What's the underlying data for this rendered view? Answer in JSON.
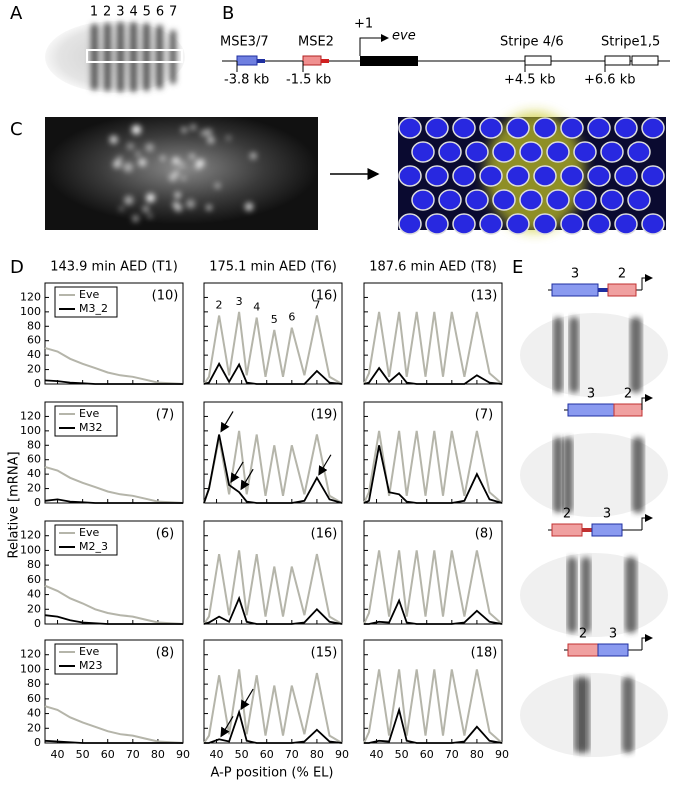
{
  "figure": {
    "y_label": "Relative [mRNA]",
    "x_label": "A-P position (% EL)"
  },
  "panel_labels": [
    "A",
    "B",
    "C",
    "D",
    "E"
  ],
  "panel_a": {
    "stripe_numbers": [
      "1",
      "2",
      "3",
      "4",
      "5",
      "6",
      "7"
    ]
  },
  "panel_b": {
    "elements": [
      {
        "label": "MSE3/7",
        "position": "-3.8 kb"
      },
      {
        "label": "MSE2",
        "position": "-1.5 kb"
      },
      {
        "label": "Stripe 4/6",
        "position": "+4.5 kb"
      },
      {
        "label": "Stripe1,5",
        "position": "+6.6 kb"
      }
    ],
    "tss": "+1",
    "gene": "eve"
  },
  "panel_e": {
    "constructs": [
      {
        "labels": [
          "3",
          "2"
        ]
      },
      {
        "labels": [
          "3",
          "2"
        ]
      },
      {
        "labels": [
          "2",
          "3"
        ]
      },
      {
        "labels": [
          "2",
          "3"
        ]
      }
    ]
  },
  "chart_data": [
    {
      "type": "line",
      "title": "143.9 min AED (T1)",
      "annotation": "(10)",
      "legend": "upper left",
      "xlim": [
        35,
        90
      ],
      "ylim": [
        0,
        140
      ],
      "xticks": [
        40,
        50,
        60,
        70,
        80,
        90
      ],
      "yticks": [
        0,
        20,
        40,
        60,
        80,
        100,
        120
      ],
      "x": [
        35,
        40,
        45,
        50,
        55,
        60,
        65,
        70,
        75,
        80,
        85,
        90
      ],
      "series": [
        {
          "name": "Eve",
          "color": "#b5b5aa",
          "values": [
            50,
            45,
            35,
            28,
            22,
            16,
            12,
            10,
            6,
            2,
            1,
            0
          ]
        },
        {
          "name": "M3_2",
          "color": "#000000",
          "values": [
            5,
            4,
            2,
            1,
            0,
            0,
            0,
            0,
            0,
            0,
            0,
            0
          ]
        }
      ]
    },
    {
      "type": "line",
      "title": "175.1 min AED (T6)",
      "annotation": "(16)",
      "peak_labels": [
        "2",
        "3",
        "4",
        "5",
        "6",
        "7"
      ],
      "xlim": [
        35,
        90
      ],
      "ylim": [
        0,
        140
      ],
      "xticks": [
        40,
        50,
        60,
        70,
        80,
        90
      ],
      "yticks": [
        0,
        20,
        40,
        60,
        80,
        100,
        120
      ],
      "x": [
        35,
        37,
        41,
        45,
        49,
        52,
        56,
        59.5,
        63,
        66.5,
        70,
        75,
        80,
        85,
        90
      ],
      "series": [
        {
          "color": "#b5b5aa",
          "values": [
            0,
            10,
            95,
            12,
            100,
            12,
            92,
            10,
            75,
            10,
            78,
            12,
            95,
            10,
            0
          ]
        },
        {
          "color": "#000000",
          "values": [
            0,
            2,
            28,
            3,
            27,
            2,
            0,
            0,
            0,
            0,
            0,
            0,
            18,
            2,
            0
          ]
        }
      ]
    },
    {
      "type": "line",
      "title": "187.6 min AED (T8)",
      "annotation": "(13)",
      "xlim": [
        35,
        90
      ],
      "ylim": [
        0,
        140
      ],
      "xticks": [
        40,
        50,
        60,
        70,
        80,
        90
      ],
      "yticks": [
        0,
        20,
        40,
        60,
        80,
        100,
        120
      ],
      "x": [
        35,
        37,
        41,
        45,
        49,
        52,
        56,
        59.5,
        63,
        66.5,
        70,
        75,
        80,
        85,
        90
      ],
      "series": [
        {
          "color": "#b5b5aa",
          "values": [
            0,
            15,
            100,
            10,
            100,
            10,
            100,
            10,
            100,
            10,
            100,
            10,
            100,
            15,
            0
          ]
        },
        {
          "color": "#000000",
          "values": [
            0,
            2,
            22,
            3,
            15,
            2,
            0,
            0,
            0,
            0,
            0,
            0,
            12,
            2,
            0
          ]
        }
      ]
    },
    {
      "type": "line",
      "annotation": "(7)",
      "legend": "upper left",
      "xlim": [
        35,
        90
      ],
      "ylim": [
        0,
        140
      ],
      "xticks": [
        40,
        50,
        60,
        70,
        80,
        90
      ],
      "yticks": [
        0,
        20,
        40,
        60,
        80,
        100,
        120
      ],
      "x": [
        35,
        40,
        45,
        50,
        55,
        60,
        65,
        70,
        75,
        80,
        85,
        90
      ],
      "series": [
        {
          "name": "Eve",
          "color": "#b5b5aa",
          "values": [
            50,
            45,
            35,
            28,
            22,
            16,
            12,
            10,
            6,
            2,
            1,
            0
          ]
        },
        {
          "name": "M32",
          "color": "#000000",
          "values": [
            3,
            5,
            2,
            1,
            0,
            0,
            0,
            0,
            0,
            0,
            0,
            0
          ]
        }
      ]
    },
    {
      "type": "line",
      "annotation": "(19)",
      "xlim": [
        35,
        90
      ],
      "ylim": [
        0,
        140
      ],
      "xticks": [
        40,
        50,
        60,
        70,
        80,
        90
      ],
      "yticks": [
        0,
        20,
        40,
        60,
        80,
        100,
        120
      ],
      "x": [
        35,
        37,
        41,
        45,
        49,
        52,
        56,
        59.5,
        63,
        66.5,
        70,
        75,
        80,
        85,
        90
      ],
      "series": [
        {
          "color": "#b5b5aa",
          "values": [
            0,
            20,
            90,
            12,
            100,
            12,
            95,
            10,
            80,
            10,
            80,
            12,
            95,
            10,
            0
          ]
        },
        {
          "color": "#000000",
          "values": [
            0,
            20,
            95,
            25,
            15,
            2,
            0,
            0,
            0,
            0,
            0,
            3,
            35,
            5,
            0
          ]
        }
      ]
    },
    {
      "type": "line",
      "annotation": "(7)",
      "xlim": [
        35,
        90
      ],
      "ylim": [
        0,
        140
      ],
      "xticks": [
        40,
        50,
        60,
        70,
        80,
        90
      ],
      "yticks": [
        0,
        20,
        40,
        60,
        80,
        100,
        120
      ],
      "x": [
        35,
        37,
        41,
        45,
        49,
        52,
        56,
        59.5,
        63,
        66.5,
        70,
        75,
        80,
        85,
        90
      ],
      "series": [
        {
          "color": "#b5b5aa",
          "values": [
            0,
            15,
            100,
            10,
            100,
            10,
            100,
            10,
            100,
            10,
            100,
            10,
            100,
            15,
            0
          ]
        },
        {
          "color": "#000000",
          "values": [
            0,
            3,
            80,
            15,
            12,
            2,
            0,
            0,
            0,
            0,
            0,
            3,
            40,
            5,
            0
          ]
        }
      ]
    },
    {
      "type": "line",
      "annotation": "(6)",
      "legend": "upper left",
      "xlim": [
        35,
        90
      ],
      "ylim": [
        0,
        140
      ],
      "xticks": [
        40,
        50,
        60,
        70,
        80,
        90
      ],
      "yticks": [
        0,
        20,
        40,
        60,
        80,
        100,
        120
      ],
      "x": [
        35,
        40,
        45,
        50,
        55,
        60,
        65,
        70,
        75,
        80,
        85,
        90
      ],
      "series": [
        {
          "name": "Eve",
          "color": "#b5b5aa",
          "values": [
            52,
            45,
            35,
            28,
            20,
            15,
            12,
            10,
            6,
            2,
            1,
            0
          ]
        },
        {
          "name": "M2_3",
          "color": "#000000",
          "values": [
            12,
            10,
            5,
            2,
            1,
            0,
            0,
            0,
            0,
            0,
            0,
            0
          ]
        }
      ]
    },
    {
      "type": "line",
      "annotation": "(16)",
      "xlim": [
        35,
        90
      ],
      "ylim": [
        0,
        140
      ],
      "xticks": [
        40,
        50,
        60,
        70,
        80,
        90
      ],
      "yticks": [
        0,
        20,
        40,
        60,
        80,
        100,
        120
      ],
      "x": [
        35,
        37,
        41,
        45,
        49,
        52,
        56,
        59.5,
        63,
        66.5,
        70,
        75,
        80,
        85,
        90
      ],
      "series": [
        {
          "color": "#b5b5aa",
          "values": [
            0,
            10,
            95,
            12,
            100,
            12,
            95,
            10,
            78,
            10,
            78,
            12,
            95,
            10,
            0
          ]
        },
        {
          "color": "#000000",
          "values": [
            0,
            2,
            10,
            3,
            35,
            3,
            0,
            0,
            0,
            0,
            0,
            2,
            20,
            3,
            0
          ]
        }
      ]
    },
    {
      "type": "line",
      "annotation": "(8)",
      "xlim": [
        35,
        90
      ],
      "ylim": [
        0,
        140
      ],
      "xticks": [
        40,
        50,
        60,
        70,
        80,
        90
      ],
      "yticks": [
        0,
        20,
        40,
        60,
        80,
        100,
        120
      ],
      "x": [
        35,
        37,
        41,
        45,
        49,
        52,
        56,
        59.5,
        63,
        66.5,
        70,
        75,
        80,
        85,
        90
      ],
      "series": [
        {
          "color": "#b5b5aa",
          "values": [
            0,
            15,
            100,
            10,
            100,
            10,
            100,
            10,
            100,
            10,
            100,
            10,
            100,
            15,
            0
          ]
        },
        {
          "color": "#000000",
          "values": [
            0,
            0,
            3,
            2,
            32,
            2,
            0,
            0,
            0,
            0,
            0,
            2,
            18,
            3,
            0
          ]
        }
      ]
    },
    {
      "type": "line",
      "annotation": "(8)",
      "legend": "upper left",
      "xlim": [
        35,
        90
      ],
      "ylim": [
        0,
        140
      ],
      "xticks": [
        40,
        50,
        60,
        70,
        80,
        90
      ],
      "yticks": [
        0,
        20,
        40,
        60,
        80,
        100,
        120
      ],
      "x": [
        35,
        40,
        45,
        50,
        55,
        60,
        65,
        70,
        75,
        80,
        85,
        90
      ],
      "series": [
        {
          "name": "Eve",
          "color": "#b5b5aa",
          "values": [
            50,
            45,
            35,
            28,
            22,
            16,
            12,
            10,
            6,
            2,
            1,
            0
          ]
        },
        {
          "name": "M23",
          "color": "#000000",
          "values": [
            3,
            2,
            1,
            0,
            0,
            0,
            0,
            0,
            0,
            0,
            0,
            0
          ]
        }
      ]
    },
    {
      "type": "line",
      "annotation": "(15)",
      "xlim": [
        35,
        90
      ],
      "ylim": [
        0,
        140
      ],
      "xticks": [
        40,
        50,
        60,
        70,
        80,
        90
      ],
      "yticks": [
        0,
        20,
        40,
        60,
        80,
        100,
        120
      ],
      "x": [
        35,
        37,
        41,
        45,
        49,
        52,
        56,
        59.5,
        63,
        66.5,
        70,
        75,
        80,
        85,
        90
      ],
      "series": [
        {
          "color": "#b5b5aa",
          "values": [
            0,
            10,
            92,
            12,
            100,
            12,
            92,
            10,
            78,
            10,
            78,
            12,
            95,
            10,
            0
          ]
        },
        {
          "color": "#000000",
          "values": [
            0,
            0,
            5,
            2,
            42,
            3,
            0,
            0,
            0,
            0,
            0,
            2,
            18,
            2,
            0
          ]
        }
      ]
    },
    {
      "type": "line",
      "annotation": "(18)",
      "xlim": [
        35,
        90
      ],
      "ylim": [
        0,
        140
      ],
      "xticks": [
        40,
        50,
        60,
        70,
        80,
        90
      ],
      "yticks": [
        0,
        20,
        40,
        60,
        80,
        100,
        120
      ],
      "x": [
        35,
        37,
        41,
        45,
        49,
        52,
        56,
        59.5,
        63,
        66.5,
        70,
        75,
        80,
        85,
        90
      ],
      "series": [
        {
          "color": "#b5b5aa",
          "values": [
            0,
            15,
            100,
            10,
            100,
            10,
            100,
            10,
            100,
            10,
            100,
            10,
            100,
            15,
            0
          ]
        },
        {
          "color": "#000000",
          "values": [
            0,
            0,
            3,
            2,
            45,
            3,
            0,
            0,
            0,
            0,
            0,
            2,
            22,
            3,
            0
          ]
        }
      ]
    }
  ]
}
